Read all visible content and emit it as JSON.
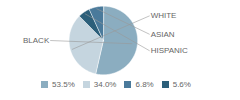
{
  "chart_data": {
    "type": "pie",
    "categories": [
      "BLACK",
      "WHITE",
      "HISPANIC",
      "ASIAN"
    ],
    "values": [
      53.5,
      34.0,
      5.6,
      6.8
    ],
    "value_labels": [
      "53.5%",
      "34.0%",
      "5.6%",
      "6.8%"
    ],
    "colors": [
      "#8badc0",
      "#c5d5df",
      "#2c5f7a",
      "#4a7a9b"
    ],
    "legend": "bottom"
  }
}
